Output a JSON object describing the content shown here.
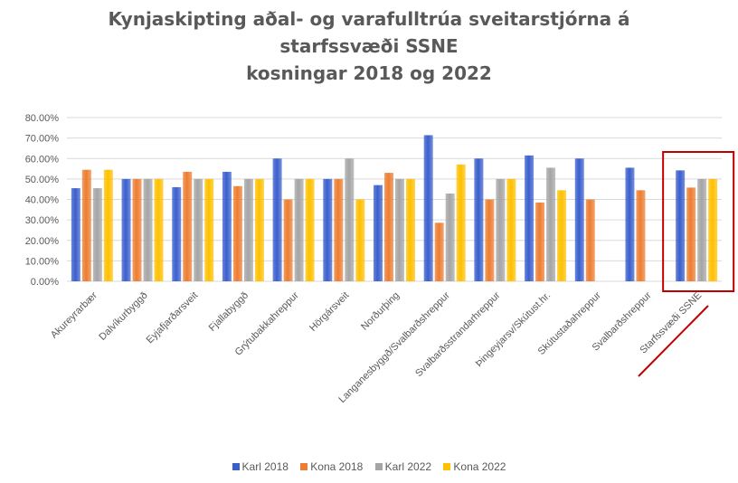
{
  "chart_data": {
    "type": "bar",
    "title_lines": [
      "Kynjaskipting  aðal- og varafulltrúa  sveitarstjórna  á",
      "starfssvæði  SSNE",
      "kosningar  2018 og 2022"
    ],
    "categories": [
      "Akureyrarbær",
      "Dalvíkurbyggð",
      "Eyjafjarðarsveit",
      "Fjallabyggð",
      "Grýtubakkahreppur",
      "Hörgársveit",
      "Norðurþing",
      "Langanesbyggð/Svalbarðshreppur",
      "Svalbarðsstrandarhreppur",
      "Þingeyjarsv/Skútust.hr.",
      "Skútustaðahreppur",
      "Svalbarðshreppur",
      "Starfssvæði SSNE"
    ],
    "y_ticks": [
      "0.00%",
      "10.00%",
      "20.00%",
      "30.00%",
      "40.00%",
      "50.00%",
      "60.00%",
      "70.00%",
      "80.00%"
    ],
    "ylim": [
      0,
      80
    ],
    "grid": true,
    "legend_position": "bottom",
    "series": [
      {
        "name": "Karl 2018",
        "color": "#3a5fcd",
        "values": [
          45.5,
          50,
          46,
          53.5,
          60,
          50,
          47,
          71.4,
          60,
          61.5,
          60,
          55.5,
          54.2
        ]
      },
      {
        "name": "Kona 2018",
        "color": "#ed7d31",
        "values": [
          54.5,
          50,
          53.5,
          46.5,
          40,
          50,
          53,
          28.6,
          40,
          38.5,
          40,
          44.5,
          45.8
        ]
      },
      {
        "name": "Karl 2022",
        "color": "#a5a5a5",
        "values": [
          45.5,
          50,
          50,
          50,
          50,
          60,
          50,
          42.9,
          50,
          55.5,
          null,
          null,
          50
        ]
      },
      {
        "name": "Kona 2022",
        "color": "#ffc000",
        "values": [
          54.5,
          50,
          50,
          50,
          50,
          40,
          50,
          57.1,
          50,
          44.5,
          null,
          null,
          50
        ]
      }
    ],
    "highlight": {
      "category": "Starfssvæði SSNE",
      "color": "#c00000"
    }
  }
}
